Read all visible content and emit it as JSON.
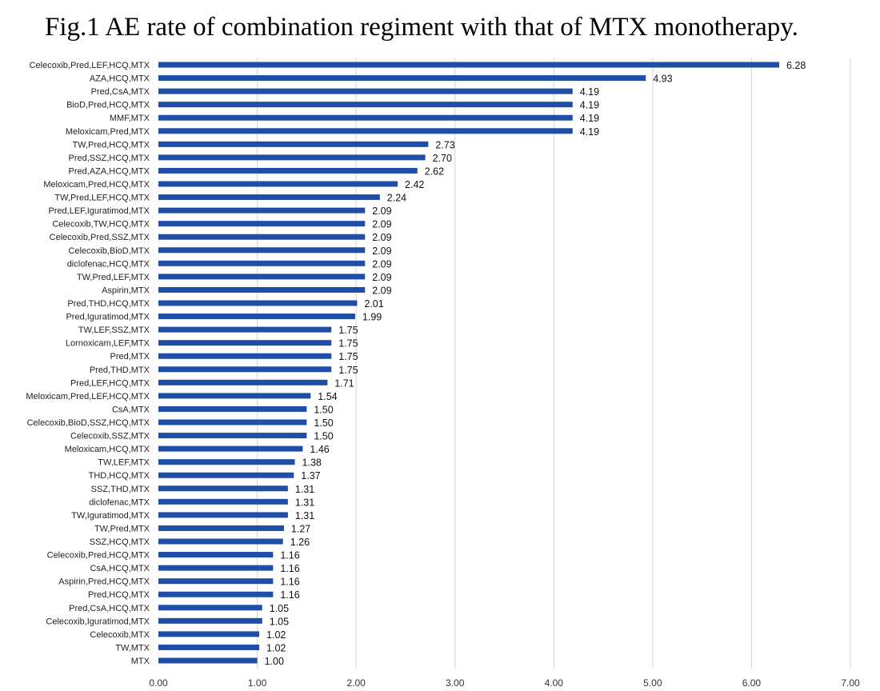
{
  "chart_data": {
    "type": "bar",
    "orientation": "horizontal",
    "title": "Fig.1 AE rate of combination regiment with that of MTX monotherapy.",
    "xlabel": "",
    "ylabel": "",
    "xlim": [
      0,
      7
    ],
    "xticks": [
      "0.00",
      "1.00",
      "2.00",
      "3.00",
      "4.00",
      "5.00",
      "6.00",
      "7.00"
    ],
    "grid": "vertical",
    "legend": "none",
    "bar_color": "#1f4ea6",
    "categories": [
      "Celecoxib,Pred,LEF,HCQ,MTX",
      "AZA,HCQ,MTX",
      "Pred,CsA,MTX",
      "BioD,Pred,HCQ,MTX",
      "MMF,MTX",
      "Meloxicam,Pred,MTX",
      "TW,Pred,HCQ,MTX",
      "Pred,SSZ,HCQ,MTX",
      "Pred,AZA,HCQ,MTX",
      "Meloxicam,Pred,HCQ,MTX",
      "TW,Pred,LEF,HCQ,MTX",
      "Pred,LEF,Iguratimod,MTX",
      "Celecoxib,TW,HCQ,MTX",
      "Celecoxib,Pred,SSZ,MTX",
      "Celecoxib,BioD,MTX",
      "diclofenac,HCQ,MTX",
      "TW,Pred,LEF,MTX",
      "Aspirin,MTX",
      "Pred,THD,HCQ,MTX",
      "Pred,Iguratimod,MTX",
      "TW,LEF,SSZ,MTX",
      "Lornoxicam,LEF,MTX",
      "Pred,MTX",
      "Pred,THD,MTX",
      "Pred,LEF,HCQ,MTX",
      "Meloxicam,Pred,LEF,HCQ,MTX",
      "CsA,MTX",
      "Celecoxib,BioD,SSZ,HCQ,MTX",
      "Celecoxib,SSZ,MTX",
      "Meloxicam,HCQ,MTX",
      "TW,LEF,MTX",
      "THD,HCQ,MTX",
      "SSZ,THD,MTX",
      "diclofenac,MTX",
      "TW,Iguratimod,MTX",
      "TW,Pred,MTX",
      "SSZ,HCQ,MTX",
      "Celecoxib,Pred,HCQ,MTX",
      "CsA,HCQ,MTX",
      "Aspirin,Pred,HCQ,MTX",
      "Pred,HCQ,MTX",
      "Pred,CsA,HCQ,MTX",
      "Celecoxib,Iguratimod,MTX",
      "Celecoxib,MTX",
      "TW,MTX",
      "MTX"
    ],
    "values": [
      6.28,
      4.93,
      4.19,
      4.19,
      4.19,
      4.19,
      2.73,
      2.7,
      2.62,
      2.42,
      2.24,
      2.09,
      2.09,
      2.09,
      2.09,
      2.09,
      2.09,
      2.09,
      2.01,
      1.99,
      1.75,
      1.75,
      1.75,
      1.75,
      1.71,
      1.54,
      1.5,
      1.5,
      1.5,
      1.46,
      1.38,
      1.37,
      1.31,
      1.31,
      1.31,
      1.27,
      1.26,
      1.16,
      1.16,
      1.16,
      1.16,
      1.05,
      1.05,
      1.02,
      1.02,
      1.0
    ],
    "value_labels": [
      "6.28",
      "4.93",
      "4.19",
      "4.19",
      "4.19",
      "4.19",
      "2.73",
      "2.70",
      "2.62",
      "2.42",
      "2.24",
      "2.09",
      "2.09",
      "2.09",
      "2.09",
      "2.09",
      "2.09",
      "2.09",
      "2.01",
      "1.99",
      "1.75",
      "1.75",
      "1.75",
      "1.75",
      "1.71",
      "1.54",
      "1.50",
      "1.50",
      "1.50",
      "1.46",
      "1.38",
      "1.37",
      "1.31",
      "1.31",
      "1.31",
      "1.27",
      "1.26",
      "1.16",
      "1.16",
      "1.16",
      "1.16",
      "1.05",
      "1.05",
      "1.02",
      "1.02",
      "1.00"
    ]
  }
}
